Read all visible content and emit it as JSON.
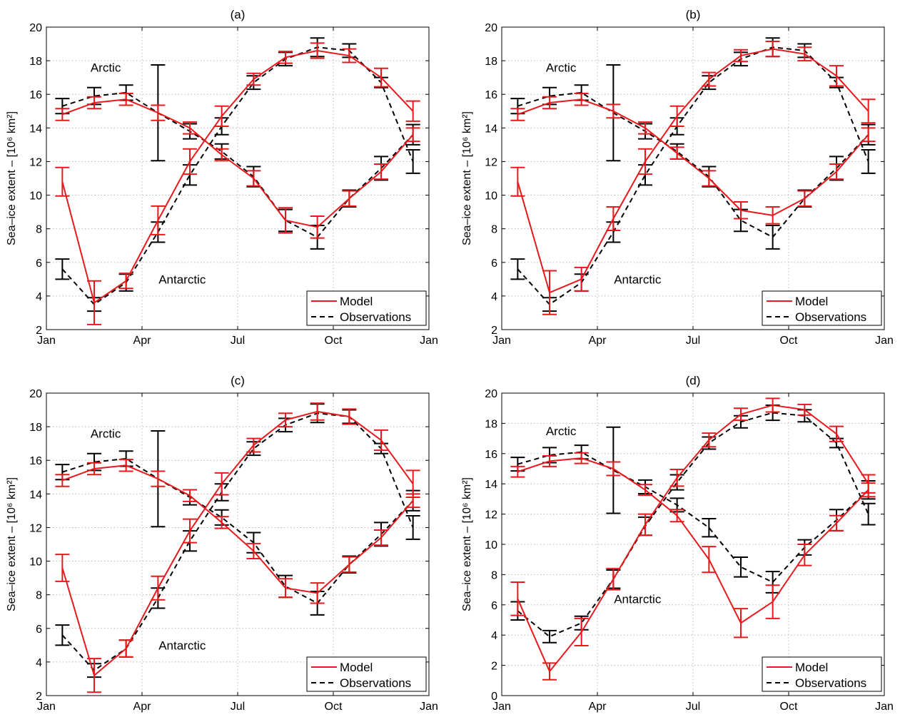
{
  "figure": {
    "ylabel": "Sea–ice extent – [10⁶ km²]",
    "legend": {
      "model_label": "Model",
      "obs_label": "Observations"
    },
    "colors": {
      "model": "#e8191c",
      "observations": "#000000"
    },
    "annotations": {
      "arctic": "Arctic",
      "antarctic": "Antarctic"
    }
  },
  "chart_data": [
    {
      "type": "line",
      "title": "(a)",
      "xlabel": "",
      "ylabel": "Sea–ice extent – [10⁶ km²]",
      "xticks": [
        "Jan",
        "Apr",
        "Jul",
        "Oct",
        "Jan"
      ],
      "x": [
        "Jan",
        "Feb",
        "Mar",
        "Apr",
        "May",
        "Jun",
        "Jul",
        "Aug",
        "Sep",
        "Oct",
        "Nov",
        "Dec"
      ],
      "ylim": [
        2,
        20
      ],
      "yticks": [
        2,
        4,
        6,
        8,
        10,
        12,
        14,
        16,
        18,
        20
      ],
      "grid": true,
      "legend_position": "bottom-right",
      "series": [
        {
          "name": "Model",
          "region": "Arctic",
          "style": "solid",
          "values": [
            14.8,
            15.5,
            15.7,
            14.9,
            14.0,
            12.4,
            11.0,
            8.5,
            8.1,
            9.8,
            11.4,
            13.6
          ],
          "err": [
            0.35,
            0.35,
            0.35,
            0.45,
            0.35,
            0.35,
            0.45,
            0.75,
            0.65,
            0.45,
            0.45,
            0.4
          ]
        },
        {
          "name": "Observations",
          "region": "Arctic",
          "style": "dashed",
          "values": [
            15.3,
            15.9,
            16.1,
            14.9,
            13.8,
            12.6,
            11.1,
            8.5,
            7.5,
            9.8,
            11.6,
            13.6
          ],
          "err": [
            0.45,
            0.5,
            0.45,
            2.85,
            0.45,
            0.45,
            0.6,
            0.65,
            0.7,
            0.5,
            0.7,
            0.6
          ]
        },
        {
          "name": "Model",
          "region": "Antarctic",
          "style": "solid",
          "values": [
            10.8,
            3.6,
            4.9,
            8.5,
            12.0,
            14.7,
            16.9,
            18.2,
            18.6,
            18.3,
            17.0,
            15.0
          ],
          "err": [
            0.85,
            1.3,
            0.45,
            0.85,
            0.75,
            0.6,
            0.35,
            0.35,
            0.45,
            0.4,
            0.55,
            0.6
          ]
        },
        {
          "name": "Observations",
          "region": "Antarctic",
          "style": "dashed",
          "values": [
            5.6,
            3.5,
            4.8,
            7.8,
            11.2,
            14.1,
            16.7,
            18.1,
            18.8,
            18.6,
            16.7,
            12.0
          ],
          "err": [
            0.6,
            0.4,
            0.5,
            0.6,
            0.6,
            0.5,
            0.4,
            0.4,
            0.55,
            0.4,
            0.3,
            0.7
          ]
        }
      ]
    },
    {
      "type": "line",
      "title": "(b)",
      "xlabel": "",
      "ylabel": "Sea–ice extent – [10⁶ km²]",
      "xticks": [
        "Jan",
        "Apr",
        "Jul",
        "Oct",
        "Jan"
      ],
      "x": [
        "Jan",
        "Feb",
        "Mar",
        "Apr",
        "May",
        "Jun",
        "Jul",
        "Aug",
        "Sep",
        "Oct",
        "Nov",
        "Dec"
      ],
      "ylim": [
        2,
        20
      ],
      "yticks": [
        2,
        4,
        6,
        8,
        10,
        12,
        14,
        16,
        18,
        20
      ],
      "grid": true,
      "legend_position": "bottom-right",
      "series": [
        {
          "name": "Model",
          "region": "Arctic",
          "style": "solid",
          "values": [
            14.8,
            15.5,
            15.7,
            15.0,
            14.0,
            12.5,
            11.0,
            9.1,
            8.8,
            9.8,
            11.4,
            13.6
          ],
          "err": [
            0.35,
            0.35,
            0.35,
            0.4,
            0.35,
            0.35,
            0.45,
            0.5,
            0.5,
            0.45,
            0.45,
            0.4
          ]
        },
        {
          "name": "Observations",
          "region": "Arctic",
          "style": "dashed",
          "values": [
            15.3,
            15.9,
            16.1,
            14.9,
            13.8,
            12.6,
            11.1,
            8.5,
            7.5,
            9.8,
            11.6,
            13.6
          ],
          "err": [
            0.45,
            0.5,
            0.45,
            2.85,
            0.45,
            0.45,
            0.6,
            0.65,
            0.7,
            0.5,
            0.7,
            0.6
          ]
        },
        {
          "name": "Model",
          "region": "Antarctic",
          "style": "solid",
          "values": [
            10.8,
            4.2,
            5.0,
            8.6,
            12.0,
            14.7,
            16.9,
            18.3,
            18.7,
            18.4,
            17.1,
            15.0
          ],
          "err": [
            0.85,
            1.3,
            0.7,
            0.7,
            0.75,
            0.6,
            0.4,
            0.35,
            0.45,
            0.4,
            0.6,
            0.7
          ]
        },
        {
          "name": "Observations",
          "region": "Antarctic",
          "style": "dashed",
          "values": [
            5.6,
            3.5,
            4.8,
            7.8,
            11.2,
            14.1,
            16.7,
            18.1,
            18.8,
            18.6,
            16.7,
            12.0
          ],
          "err": [
            0.6,
            0.4,
            0.5,
            0.6,
            0.6,
            0.5,
            0.4,
            0.4,
            0.55,
            0.4,
            0.3,
            0.7
          ]
        }
      ]
    },
    {
      "type": "line",
      "title": "(c)",
      "xlabel": "",
      "ylabel": "Sea–ice extent – [10⁶ km²]",
      "xticks": [
        "Jan",
        "Apr",
        "Jul",
        "Oct",
        "Jan"
      ],
      "x": [
        "Jan",
        "Feb",
        "Mar",
        "Apr",
        "May",
        "Jun",
        "Jul",
        "Aug",
        "Sep",
        "Oct",
        "Nov",
        "Dec"
      ],
      "ylim": [
        2,
        20
      ],
      "yticks": [
        2,
        4,
        6,
        8,
        10,
        12,
        14,
        16,
        18,
        20
      ],
      "grid": true,
      "legend_position": "bottom-right",
      "series": [
        {
          "name": "Model",
          "region": "Arctic",
          "style": "solid",
          "values": [
            14.8,
            15.5,
            15.7,
            14.9,
            13.9,
            12.3,
            10.6,
            8.4,
            8.1,
            9.8,
            11.4,
            13.6
          ],
          "err": [
            0.35,
            0.35,
            0.35,
            0.45,
            0.35,
            0.35,
            0.45,
            0.55,
            0.6,
            0.45,
            0.45,
            0.4
          ]
        },
        {
          "name": "Observations",
          "region": "Arctic",
          "style": "dashed",
          "values": [
            15.3,
            15.9,
            16.1,
            14.9,
            13.8,
            12.6,
            11.1,
            8.5,
            7.5,
            9.8,
            11.6,
            13.6
          ],
          "err": [
            0.45,
            0.5,
            0.45,
            2.85,
            0.45,
            0.45,
            0.6,
            0.65,
            0.7,
            0.5,
            0.7,
            0.6
          ]
        },
        {
          "name": "Model",
          "region": "Antarctic",
          "style": "solid",
          "values": [
            9.6,
            3.2,
            4.8,
            8.4,
            11.8,
            14.6,
            16.9,
            18.4,
            18.9,
            18.6,
            17.2,
            14.6
          ],
          "err": [
            0.8,
            1.0,
            0.5,
            0.7,
            0.7,
            0.65,
            0.4,
            0.4,
            0.5,
            0.45,
            0.6,
            0.8
          ]
        },
        {
          "name": "Observations",
          "region": "Antarctic",
          "style": "dashed",
          "values": [
            5.6,
            3.5,
            4.8,
            7.8,
            11.2,
            14.1,
            16.7,
            18.1,
            18.8,
            18.6,
            16.7,
            12.0
          ],
          "err": [
            0.6,
            0.4,
            0.5,
            0.6,
            0.6,
            0.5,
            0.4,
            0.4,
            0.55,
            0.4,
            0.3,
            0.7
          ]
        }
      ]
    },
    {
      "type": "line",
      "title": "(d)",
      "xlabel": "",
      "ylabel": "Sea–ice extent – [10⁶ km²]",
      "xticks": [
        "Jan",
        "Apr",
        "Jul",
        "Oct",
        "Jan"
      ],
      "x": [
        "Jan",
        "Feb",
        "Mar",
        "Apr",
        "May",
        "Jun",
        "Jul",
        "Aug",
        "Sep",
        "Oct",
        "Nov",
        "Dec"
      ],
      "ylim": [
        0,
        20
      ],
      "yticks": [
        0,
        2,
        4,
        6,
        8,
        10,
        12,
        14,
        16,
        18,
        20
      ],
      "grid": true,
      "legend_position": "bottom-right",
      "series": [
        {
          "name": "Model",
          "region": "Arctic",
          "style": "solid",
          "values": [
            14.8,
            15.5,
            15.7,
            15.0,
            13.6,
            11.9,
            9.0,
            4.8,
            6.2,
            9.3,
            11.4,
            13.6
          ],
          "err": [
            0.35,
            0.35,
            0.35,
            0.45,
            0.35,
            0.4,
            0.85,
            0.95,
            1.1,
            0.7,
            0.5,
            0.45
          ]
        },
        {
          "name": "Observations",
          "region": "Arctic",
          "style": "dashed",
          "values": [
            15.3,
            15.9,
            16.1,
            14.9,
            13.8,
            12.6,
            11.1,
            8.5,
            7.5,
            9.8,
            11.6,
            13.6
          ],
          "err": [
            0.45,
            0.5,
            0.45,
            2.85,
            0.45,
            0.45,
            0.6,
            0.65,
            0.7,
            0.5,
            0.7,
            0.6
          ]
        },
        {
          "name": "Model",
          "region": "Antarctic",
          "style": "solid",
          "values": [
            6.4,
            1.6,
            4.2,
            7.7,
            11.3,
            14.4,
            16.9,
            18.6,
            19.2,
            18.9,
            17.3,
            14.0
          ],
          "err": [
            1.1,
            0.55,
            0.9,
            0.7,
            0.7,
            0.55,
            0.45,
            0.4,
            0.45,
            0.35,
            0.5,
            0.6
          ]
        },
        {
          "name": "Observations",
          "region": "Antarctic",
          "style": "dashed",
          "values": [
            5.6,
            3.9,
            4.8,
            7.7,
            11.2,
            14.1,
            16.7,
            18.1,
            18.7,
            18.5,
            16.7,
            12.0
          ],
          "err": [
            0.6,
            0.4,
            0.45,
            0.6,
            0.6,
            0.5,
            0.4,
            0.4,
            0.5,
            0.4,
            0.3,
            0.7
          ]
        }
      ]
    }
  ]
}
